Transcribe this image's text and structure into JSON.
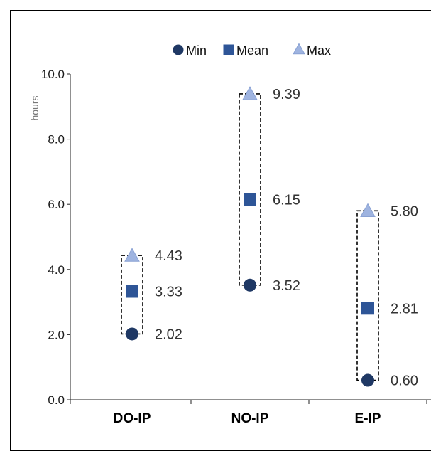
{
  "chart_data": {
    "type": "scatter",
    "ylabel": "hours",
    "ylim": [
      0,
      10
    ],
    "yticks": [
      "0.0",
      "2.0",
      "4.0",
      "6.0",
      "8.0",
      "10.0"
    ],
    "categories": [
      "DO-IP",
      "NO-IP",
      "E-IP"
    ],
    "series": [
      {
        "name": "Min",
        "marker": "circle",
        "color": "#1f3864",
        "values": [
          2.02,
          3.52,
          0.6
        ],
        "labels": [
          "2.02",
          "3.52",
          "0.60"
        ]
      },
      {
        "name": "Mean",
        "marker": "square",
        "color": "#2e5597",
        "values": [
          3.33,
          6.15,
          2.81
        ],
        "labels": [
          "3.33",
          "6.15",
          "2.81"
        ]
      },
      {
        "name": "Max",
        "marker": "triangle",
        "color": "#9fb4e0",
        "values": [
          4.43,
          9.39,
          5.8
        ],
        "labels": [
          "4.43",
          "9.39",
          "5.80"
        ]
      }
    ],
    "range_boxes": "dashed",
    "legend": "top-center",
    "grid": false
  }
}
